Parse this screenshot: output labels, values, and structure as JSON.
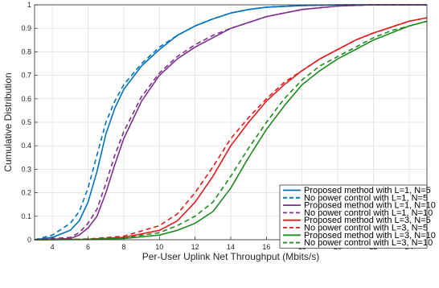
{
  "chart_data": {
    "type": "line",
    "xlabel": "Per-User Uplink Net Throughput (Mbits/s)",
    "ylabel": "Cumulative Distribution",
    "xlim": [
      3,
      25
    ],
    "ylim": [
      0,
      1
    ],
    "xticks": [
      4,
      6,
      8,
      10,
      12,
      14,
      16,
      18,
      20,
      22,
      24
    ],
    "yticks": [
      0,
      0.1,
      0.2,
      0.3,
      0.4,
      0.5,
      0.6,
      0.7,
      0.8,
      0.9,
      1
    ],
    "grid": true,
    "legend_position": "bottom-right",
    "series": [
      {
        "name": "Proposed method with  L=1, N=5",
        "color": "#0072BD",
        "dash": "solid",
        "x": [
          3,
          4,
          5,
          5.5,
          6,
          6.5,
          7,
          7.5,
          8,
          9,
          10,
          11,
          12,
          13,
          14,
          15,
          16,
          18,
          20,
          25
        ],
        "y": [
          0,
          0.01,
          0.04,
          0.08,
          0.16,
          0.29,
          0.45,
          0.56,
          0.64,
          0.74,
          0.81,
          0.87,
          0.91,
          0.94,
          0.965,
          0.98,
          0.99,
          0.997,
          1,
          1
        ]
      },
      {
        "name": "No power control with  L=1, N=5",
        "color": "#0072BD",
        "dash": "dashed",
        "x": [
          3,
          4,
          5,
          5.5,
          6,
          6.5,
          7,
          7.5,
          8,
          9,
          10,
          11,
          12,
          13,
          14,
          15,
          16,
          18,
          20,
          25
        ],
        "y": [
          0,
          0.02,
          0.07,
          0.12,
          0.22,
          0.36,
          0.5,
          0.59,
          0.66,
          0.75,
          0.82,
          0.87,
          0.91,
          0.94,
          0.965,
          0.98,
          0.99,
          0.997,
          1,
          1
        ]
      },
      {
        "name": "Proposed method with  L=1, N=10",
        "color": "#7E2F8E",
        "dash": "solid",
        "x": [
          3,
          5,
          5.5,
          6,
          6.5,
          7,
          7.5,
          8,
          9,
          10,
          11,
          12,
          13,
          14,
          16,
          18,
          20,
          22,
          25
        ],
        "y": [
          0,
          0.005,
          0.02,
          0.05,
          0.1,
          0.2,
          0.32,
          0.43,
          0.59,
          0.7,
          0.77,
          0.82,
          0.86,
          0.9,
          0.95,
          0.98,
          0.995,
          1,
          1
        ]
      },
      {
        "name": "No power control with  L=1, N=10",
        "color": "#7E2F8E",
        "dash": "dashed",
        "x": [
          3,
          5,
          5.5,
          6,
          6.5,
          7,
          7.5,
          8,
          9,
          10,
          11,
          12,
          13,
          14,
          16,
          18,
          20,
          22,
          25
        ],
        "y": [
          0,
          0.01,
          0.03,
          0.07,
          0.13,
          0.24,
          0.36,
          0.46,
          0.61,
          0.71,
          0.78,
          0.83,
          0.87,
          0.9,
          0.95,
          0.98,
          0.995,
          1,
          1
        ]
      },
      {
        "name": "Proposed method with  L=3, N=5",
        "color": "#E31A1C",
        "dash": "solid",
        "x": [
          3,
          6,
          8,
          10,
          11,
          12,
          13,
          14,
          15,
          16,
          17,
          18,
          19,
          20,
          21,
          22,
          23,
          24,
          25
        ],
        "y": [
          0,
          0.002,
          0.01,
          0.04,
          0.08,
          0.16,
          0.27,
          0.4,
          0.5,
          0.59,
          0.66,
          0.72,
          0.77,
          0.81,
          0.85,
          0.88,
          0.905,
          0.93,
          0.945
        ]
      },
      {
        "name": "No power control with  L=3, N=5",
        "color": "#E31A1C",
        "dash": "dashed",
        "x": [
          3,
          6,
          8,
          10,
          11,
          12,
          13,
          14,
          15,
          16,
          17,
          18,
          19,
          20,
          21,
          22,
          23,
          24,
          25
        ],
        "y": [
          0,
          0.003,
          0.015,
          0.06,
          0.11,
          0.2,
          0.31,
          0.43,
          0.52,
          0.6,
          0.67,
          0.72,
          0.77,
          0.81,
          0.85,
          0.88,
          0.905,
          0.93,
          0.945
        ]
      },
      {
        "name": "Proposed method with  L=3, N=10",
        "color": "#1F8A1F",
        "dash": "solid",
        "x": [
          3,
          6,
          8,
          10,
          11,
          12,
          13,
          14,
          15,
          16,
          17,
          18,
          19,
          20,
          21,
          22,
          23,
          24,
          25
        ],
        "y": [
          0,
          0.001,
          0.005,
          0.02,
          0.04,
          0.07,
          0.12,
          0.22,
          0.35,
          0.47,
          0.57,
          0.66,
          0.72,
          0.77,
          0.81,
          0.85,
          0.88,
          0.91,
          0.93
        ]
      },
      {
        "name": "No power control with  L=3, N=10",
        "color": "#1F8A1F",
        "dash": "dashed",
        "x": [
          3,
          6,
          8,
          10,
          11,
          12,
          13,
          14,
          15,
          16,
          17,
          18,
          19,
          20,
          21,
          22,
          23,
          24,
          25
        ],
        "y": [
          0,
          0.002,
          0.008,
          0.03,
          0.06,
          0.1,
          0.16,
          0.27,
          0.39,
          0.5,
          0.6,
          0.68,
          0.74,
          0.78,
          0.82,
          0.86,
          0.89,
          0.91,
          0.93
        ]
      }
    ]
  }
}
